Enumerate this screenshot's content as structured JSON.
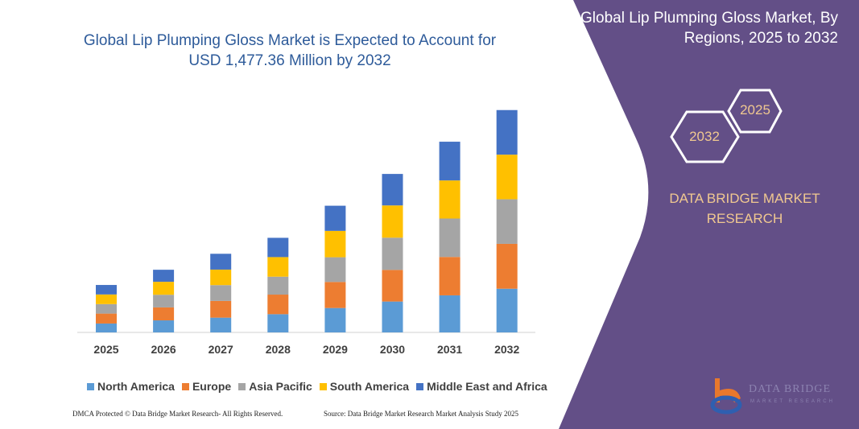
{
  "title": "Global Lip Plumping Gloss Market is Expected to Account for USD 1,477.36 Million by 2032",
  "side_panel": {
    "title": "Global Lip Plumping Gloss Market, By Regions, 2025 to 2032",
    "hex_years": [
      "2025",
      "2032"
    ],
    "brand": "DATA BRIDGE MARKET RESEARCH",
    "logo_text": "DATA BRIDGE",
    "logo_sub": "MARKET RESEARCH",
    "panel_color": "#634f87",
    "accent_color": "#f0c890"
  },
  "footer": {
    "left": "DMCA Protected © Data Bridge Market Research- All Rights Reserved.",
    "right": "Source: Data Bridge Market Research  Market Analysis Study 2025"
  },
  "chart_data": {
    "type": "bar",
    "stacked": true,
    "title": "Global Lip Plumping Gloss Market is Expected to Account for USD 1,477.36 Million by 2032",
    "xlabel": "",
    "ylabel": "",
    "y_axis_visible": false,
    "grid": false,
    "legend_position": "bottom",
    "ylim": [
      0,
      1480
    ],
    "categories": [
      "2025",
      "2026",
      "2027",
      "2028",
      "2029",
      "2030",
      "2031",
      "2032"
    ],
    "series": [
      {
        "name": "North America",
        "color": "#5b9bd5",
        "values": [
          59,
          80,
          98,
          121,
          162,
          205,
          246,
          290
        ]
      },
      {
        "name": "Europe",
        "color": "#ed7d31",
        "values": [
          66,
          86,
          111,
          130,
          173,
          210,
          255,
          298
        ]
      },
      {
        "name": "Asia Pacific",
        "color": "#a5a5a5",
        "values": [
          63,
          84,
          105,
          119,
          164,
          214,
          255,
          296
        ]
      },
      {
        "name": "South America",
        "color": "#ffc000",
        "values": [
          64,
          86,
          103,
          130,
          175,
          214,
          253,
          296
        ]
      },
      {
        "name": "Middle East and Africa",
        "color": "#4472c4",
        "values": [
          63,
          80,
          105,
          128,
          167,
          209,
          257,
          296
        ]
      }
    ]
  }
}
